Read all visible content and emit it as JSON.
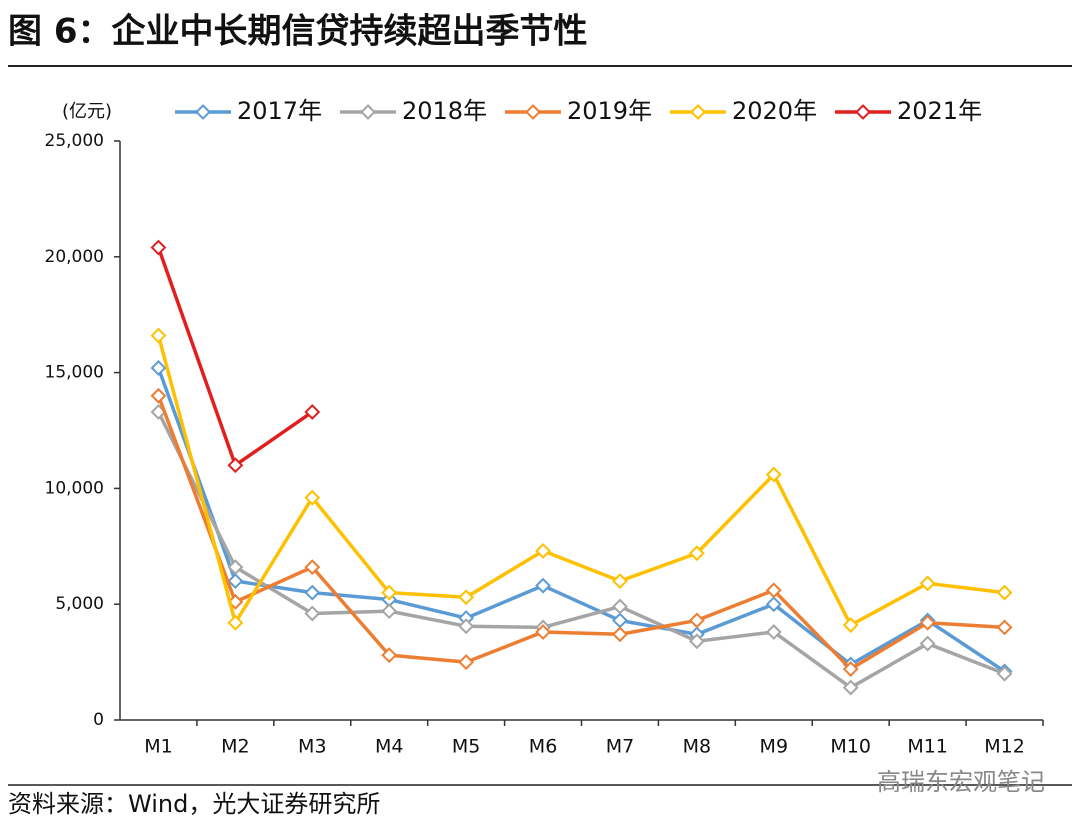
{
  "chart_data": {
    "type": "line",
    "title": "图 6：企业中长期信贷持续超出季节性",
    "y_axis_label": "(亿元)",
    "source": "资料来源：Wind，光大证券研究所",
    "watermark": "高瑞东宏观笔记",
    "categories": [
      "M1",
      "M2",
      "M3",
      "M4",
      "M5",
      "M6",
      "M7",
      "M8",
      "M9",
      "M10",
      "M11",
      "M12"
    ],
    "series": [
      {
        "name": "2017年",
        "color": "#5b9bd5",
        "values": [
          15200,
          6000,
          5500,
          5200,
          4400,
          5800,
          4300,
          3700,
          5000,
          2400,
          4300,
          2100
        ]
      },
      {
        "name": "2018年",
        "color": "#a5a5a5",
        "values": [
          13300,
          6600,
          4600,
          4700,
          4050,
          4000,
          4900,
          3400,
          3800,
          1400,
          3300,
          2000
        ]
      },
      {
        "name": "2019年",
        "color": "#ed7d31",
        "values": [
          14000,
          5100,
          6600,
          2800,
          2500,
          3800,
          3700,
          4300,
          5600,
          2200,
          4200,
          4000
        ]
      },
      {
        "name": "2020年",
        "color": "#ffc000",
        "values": [
          16600,
          4200,
          9600,
          5500,
          5300,
          7300,
          6000,
          7200,
          10600,
          4100,
          5900,
          5500
        ]
      },
      {
        "name": "2021年",
        "color": "#e02020",
        "values": [
          20400,
          11000,
          13300,
          null,
          null,
          null,
          null,
          null,
          null,
          null,
          null,
          null
        ]
      }
    ],
    "ylim": [
      0,
      25000
    ],
    "yticks": [
      0,
      {
        "value": 5000,
        "label": "5,000"
      },
      {
        "value": 10000,
        "label": "10,000"
      },
      {
        "value": 15000,
        "label": "15,000"
      },
      {
        "value": 20000,
        "label": "20,000"
      },
      {
        "value": 25000,
        "label": "25,000"
      }
    ],
    "legend": "top"
  }
}
